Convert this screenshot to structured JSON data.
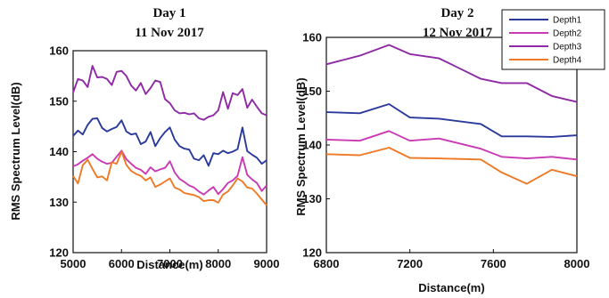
{
  "chart_data": [
    {
      "type": "line",
      "title": "Day 1",
      "subtitle": "11 Nov 2017",
      "xlabel": "Distance(m)",
      "ylabel": "RMS Spectrum Level(dB)",
      "xlim": [
        5000,
        9000
      ],
      "ylim": [
        120,
        160
      ],
      "xticks": [
        "5000",
        "6000",
        "7000",
        "8000",
        "9000"
      ],
      "yticks": [
        "120",
        "130",
        "140",
        "150",
        "160"
      ],
      "x": [
        5000,
        5100,
        5200,
        5300,
        5400,
        5500,
        5600,
        5700,
        5800,
        5900,
        6000,
        6100,
        6200,
        6300,
        6400,
        6500,
        6600,
        6700,
        6800,
        6900,
        7000,
        7100,
        7200,
        7300,
        7400,
        7500,
        7600,
        7700,
        7800,
        7900,
        8000,
        8100,
        8200,
        8300,
        8400,
        8500,
        8600,
        8700,
        8800,
        8900,
        9000
      ],
      "series": [
        {
          "name": "Depth1",
          "color": "#2a3a9c",
          "values": [
            143.1,
            144.2,
            143.4,
            145.3,
            146.5,
            146.6,
            144.7,
            144.0,
            144.5,
            144.9,
            146.2,
            144.0,
            143.4,
            143.6,
            141.5,
            142.0,
            143.9,
            141.1,
            142.7,
            143.9,
            144.8,
            142.4,
            141.1,
            140.6,
            140.4,
            138.6,
            138.3,
            139.3,
            137.2,
            139.7,
            139.5,
            140.2,
            139.7,
            140.0,
            140.5,
            144.8,
            140.1,
            139.4,
            138.8,
            137.6,
            138.3
          ]
        },
        {
          "name": "Depth2",
          "color": "#c93ab4",
          "values": [
            137.1,
            137.5,
            138.2,
            138.8,
            139.5,
            138.6,
            138.0,
            137.6,
            137.8,
            139.0,
            140.2,
            138.5,
            137.6,
            136.8,
            136.4,
            135.6,
            136.9,
            136.1,
            136.5,
            136.8,
            138.1,
            135.9,
            134.6,
            134.0,
            133.3,
            132.9,
            132.1,
            131.5,
            132.3,
            133.0,
            131.6,
            132.6,
            133.8,
            134.3,
            135.2,
            138.9,
            135.4,
            134.5,
            133.8,
            132.2,
            133.3
          ]
        },
        {
          "name": "Depth3",
          "color": "#8e2aa5",
          "values": [
            151.7,
            154.4,
            154.1,
            152.8,
            157.0,
            154.7,
            154.8,
            154.4,
            153.2,
            155.8,
            156.0,
            155.0,
            153.1,
            152.1,
            153.6,
            151.4,
            152.6,
            154.1,
            153.8,
            150.4,
            149.6,
            148.2,
            147.6,
            147.7,
            147.4,
            147.6,
            146.6,
            146.3,
            146.9,
            147.2,
            148.2,
            151.8,
            148.5,
            151.6,
            151.2,
            152.4,
            148.7,
            150.3,
            148.9,
            147.6,
            147.2
          ]
        },
        {
          "name": "Depth4",
          "color": "#ee7a26",
          "values": [
            135.2,
            133.7,
            137.3,
            138.4,
            136.6,
            134.9,
            135.1,
            134.3,
            137.9,
            137.6,
            140.0,
            137.4,
            136.2,
            135.6,
            135.2,
            134.3,
            134.9,
            133.0,
            133.5,
            134.1,
            134.7,
            132.9,
            132.5,
            131.8,
            131.6,
            131.4,
            131.0,
            130.2,
            130.4,
            130.4,
            129.9,
            131.5,
            132.1,
            133.3,
            134.7,
            134.1,
            132.9,
            132.7,
            131.7,
            130.5,
            129.4
          ]
        }
      ]
    },
    {
      "type": "line",
      "title": "Day 2",
      "subtitle": "12 Nov 2017",
      "xlabel": "Distance(m)",
      "ylabel": "RMS Spectrum Level(dB)",
      "xlim": [
        6800,
        8000
      ],
      "ylim": [
        120,
        160
      ],
      "xticks": [
        "6800",
        "7200",
        "7600",
        "8000"
      ],
      "yticks": [
        "120",
        "130",
        "140",
        "150",
        "160"
      ],
      "legend_position": "top-right",
      "x": [
        6800,
        6960,
        7100,
        7200,
        7340,
        7540,
        7640,
        7760,
        7880,
        8000
      ],
      "series": [
        {
          "name": "Depth1",
          "color": "#2a3a9c",
          "values": [
            146.1,
            145.9,
            147.6,
            145.1,
            144.9,
            143.9,
            141.6,
            141.6,
            141.5,
            141.8
          ]
        },
        {
          "name": "Depth2",
          "color": "#c93ab4",
          "values": [
            141.0,
            140.8,
            142.6,
            140.8,
            141.2,
            139.3,
            137.8,
            137.5,
            137.8,
            137.3
          ]
        },
        {
          "name": "Depth3",
          "color": "#8e2aa5",
          "values": [
            155.0,
            156.6,
            158.6,
            156.9,
            156.1,
            152.3,
            151.5,
            151.5,
            149.1,
            148.0
          ]
        },
        {
          "name": "Depth4",
          "color": "#ee7a26",
          "values": [
            138.3,
            138.1,
            139.5,
            137.6,
            137.5,
            137.3,
            134.9,
            132.8,
            135.4,
            134.2
          ]
        }
      ]
    }
  ]
}
